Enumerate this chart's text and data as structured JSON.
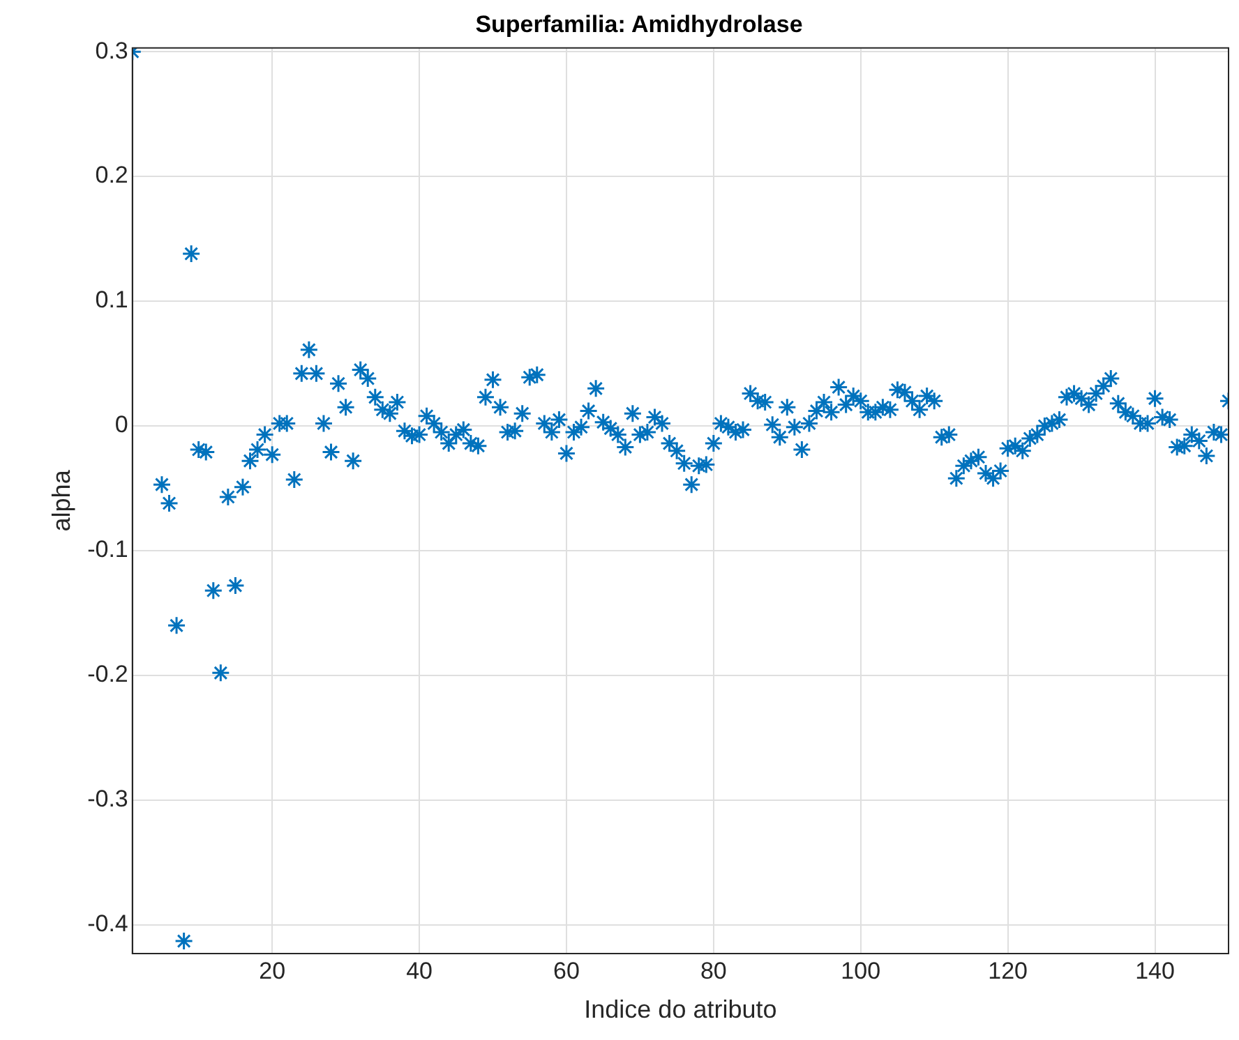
{
  "chart_data": {
    "type": "scatter",
    "title": "Superfamilia: Amidhydrolase",
    "xlabel": "Indice do atributo",
    "ylabel": "alpha",
    "color": "#0072bd",
    "marker": "cross",
    "grid": true,
    "legend": false,
    "xlim": [
      1,
      150
    ],
    "xticks": [
      20,
      40,
      60,
      80,
      100,
      120,
      140
    ],
    "ylim": [
      -0.423,
      0.303
    ],
    "yticks": [
      -0.4,
      -0.3,
      -0.2,
      -0.1,
      0,
      0.1,
      0.2,
      0.3
    ],
    "x": [
      1,
      5,
      6,
      7,
      8,
      9,
      10,
      11,
      12,
      13,
      14,
      15,
      16,
      17,
      18,
      19,
      20,
      21,
      22,
      23,
      24,
      25,
      26,
      27,
      28,
      29,
      30,
      31,
      32,
      33,
      34,
      35,
      36,
      37,
      38,
      39,
      40,
      41,
      42,
      43,
      44,
      45,
      46,
      47,
      48,
      49,
      50,
      51,
      52,
      53,
      54,
      55,
      56,
      57,
      58,
      59,
      60,
      61,
      62,
      63,
      64,
      65,
      66,
      67,
      68,
      69,
      70,
      71,
      72,
      73,
      74,
      75,
      76,
      77,
      78,
      79,
      80,
      81,
      82,
      83,
      84,
      85,
      86,
      87,
      88,
      89,
      90,
      91,
      92,
      93,
      94,
      95,
      96,
      97,
      98,
      99,
      100,
      101,
      102,
      103,
      104,
      105,
      106,
      107,
      108,
      109,
      110,
      111,
      112,
      113,
      114,
      115,
      116,
      117,
      118,
      119,
      120,
      121,
      122,
      123,
      124,
      125,
      126,
      127,
      128,
      129,
      130,
      131,
      132,
      133,
      134,
      135,
      136,
      137,
      138,
      139,
      140,
      141,
      142,
      143,
      144,
      145,
      146,
      147,
      148,
      149,
      150
    ],
    "values": [
      0.3,
      -0.047,
      -0.062,
      -0.16,
      -0.413,
      0.138,
      -0.019,
      -0.021,
      -0.132,
      -0.198,
      -0.057,
      -0.128,
      -0.049,
      -0.028,
      -0.019,
      -0.007,
      -0.023,
      0.002,
      0.002,
      -0.043,
      0.042,
      0.061,
      0.042,
      0.002,
      -0.021,
      0.034,
      0.015,
      -0.028,
      0.045,
      0.038,
      0.023,
      0.013,
      0.01,
      0.019,
      -0.004,
      -0.008,
      -0.007,
      0.008,
      0.002,
      -0.005,
      -0.014,
      -0.007,
      -0.003,
      -0.014,
      -0.016,
      0.023,
      0.037,
      0.015,
      -0.005,
      -0.004,
      0.01,
      0.039,
      0.041,
      0.002,
      -0.005,
      0.005,
      -0.022,
      -0.005,
      -0.001,
      0.012,
      0.03,
      0.003,
      -0.002,
      -0.007,
      -0.017,
      0.01,
      -0.007,
      -0.005,
      0.007,
      0.002,
      -0.014,
      -0.02,
      -0.03,
      -0.047,
      -0.032,
      -0.031,
      -0.014,
      0.002,
      -0.001,
      -0.005,
      -0.003,
      0.026,
      0.02,
      0.019,
      0.001,
      -0.009,
      0.015,
      -0.001,
      -0.019,
      0.002,
      0.012,
      0.019,
      0.011,
      0.031,
      0.017,
      0.024,
      0.02,
      0.011,
      0.011,
      0.015,
      0.013,
      0.029,
      0.027,
      0.02,
      0.013,
      0.024,
      0.02,
      -0.009,
      -0.007,
      -0.042,
      -0.032,
      -0.028,
      -0.025,
      -0.038,
      -0.042,
      -0.036,
      -0.018,
      -0.016,
      -0.02,
      -0.01,
      -0.007,
      0,
      0.002,
      0.005,
      0.023,
      0.026,
      0.022,
      0.017,
      0.026,
      0.032,
      0.038,
      0.018,
      0.011,
      0.008,
      0.002,
      0.002,
      0.022,
      0.007,
      0.005,
      -0.017,
      -0.016,
      -0.007,
      -0.012,
      -0.024,
      -0.005,
      -0.007,
      0.02
    ]
  }
}
